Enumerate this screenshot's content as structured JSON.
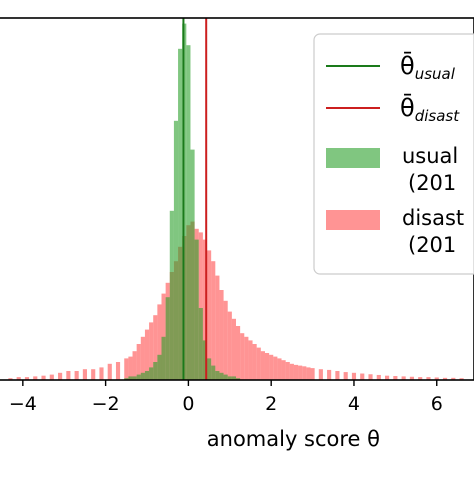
{
  "chart_data": {
    "type": "histogram",
    "xlabel": "anomaly score θ",
    "ylabel": "",
    "xlim": [
      -4.6,
      6.9
    ],
    "xticks": [
      -4,
      -2,
      0,
      2,
      4,
      6
    ],
    "x_tick_labels": [
      "−4",
      "−2",
      "0",
      "2",
      "4",
      "6"
    ],
    "yticks": [],
    "grid": false,
    "legend_position": "top-right",
    "colors": {
      "usual": "#2ca02c",
      "disaster": "#ff4d4d",
      "usual_mean_line": "#1a7a1a",
      "disaster_mean_line": "#cc1f1f"
    },
    "vertical_lines": [
      {
        "name": "θ̄usual",
        "x": -0.12,
        "color": "#1a7a1a"
      },
      {
        "name": "θ̄disast",
        "x": 0.43,
        "color": "#cc1f1f"
      }
    ],
    "series": [
      {
        "name": "usual (201",
        "bins": [
          [
            -1.5,
            0.005
          ],
          [
            -1.4,
            0.01
          ],
          [
            -1.3,
            0.01
          ],
          [
            -1.2,
            0.015
          ],
          [
            -1.1,
            0.02
          ],
          [
            -1.0,
            0.025
          ],
          [
            -0.9,
            0.035
          ],
          [
            -0.8,
            0.05
          ],
          [
            -0.7,
            0.07
          ],
          [
            -0.6,
            0.12
          ],
          [
            -0.5,
            0.23
          ],
          [
            -0.4,
            0.47
          ],
          [
            -0.3,
            0.72
          ],
          [
            -0.2,
            0.92
          ],
          [
            -0.1,
            0.99
          ],
          [
            0.0,
            0.93
          ],
          [
            0.1,
            0.64
          ],
          [
            0.2,
            0.39
          ],
          [
            0.3,
            0.2
          ],
          [
            0.4,
            0.11
          ],
          [
            0.5,
            0.06
          ],
          [
            0.6,
            0.04
          ],
          [
            0.7,
            0.025
          ],
          [
            0.8,
            0.02
          ],
          [
            0.9,
            0.015
          ],
          [
            1.0,
            0.01
          ],
          [
            1.1,
            0.01
          ],
          [
            1.2,
            0.005
          ]
        ],
        "bin_width": 0.1
      },
      {
        "name": "disast (201",
        "bins": [
          [
            -4.3,
            0.005
          ],
          [
            -4.1,
            0.008
          ],
          [
            -3.9,
            0.008
          ],
          [
            -3.7,
            0.01
          ],
          [
            -3.5,
            0.012
          ],
          [
            -3.3,
            0.015
          ],
          [
            -3.1,
            0.02
          ],
          [
            -2.9,
            0.025
          ],
          [
            -2.7,
            0.025
          ],
          [
            -2.5,
            0.03
          ],
          [
            -2.3,
            0.03
          ],
          [
            -2.1,
            0.035
          ],
          [
            -1.9,
            0.045
          ],
          [
            -1.7,
            0.05
          ],
          [
            -1.5,
            0.06
          ],
          [
            -1.4,
            0.065
          ],
          [
            -1.3,
            0.08
          ],
          [
            -1.2,
            0.1
          ],
          [
            -1.1,
            0.12
          ],
          [
            -1.0,
            0.14
          ],
          [
            -0.9,
            0.16
          ],
          [
            -0.8,
            0.18
          ],
          [
            -0.7,
            0.21
          ],
          [
            -0.6,
            0.24
          ],
          [
            -0.5,
            0.27
          ],
          [
            -0.4,
            0.3
          ],
          [
            -0.3,
            0.33
          ],
          [
            -0.2,
            0.37
          ],
          [
            -0.1,
            0.4
          ],
          [
            0.0,
            0.43
          ],
          [
            0.1,
            0.44
          ],
          [
            0.2,
            0.42
          ],
          [
            0.3,
            0.41
          ],
          [
            0.4,
            0.39
          ],
          [
            0.5,
            0.36
          ],
          [
            0.6,
            0.33
          ],
          [
            0.7,
            0.29
          ],
          [
            0.8,
            0.25
          ],
          [
            0.9,
            0.22
          ],
          [
            1.0,
            0.19
          ],
          [
            1.1,
            0.17
          ],
          [
            1.2,
            0.15
          ],
          [
            1.3,
            0.13
          ],
          [
            1.4,
            0.12
          ],
          [
            1.5,
            0.11
          ],
          [
            1.6,
            0.1
          ],
          [
            1.7,
            0.09
          ],
          [
            1.8,
            0.08
          ],
          [
            1.9,
            0.075
          ],
          [
            2.0,
            0.07
          ],
          [
            2.1,
            0.065
          ],
          [
            2.2,
            0.06
          ],
          [
            2.3,
            0.055
          ],
          [
            2.4,
            0.05
          ],
          [
            2.5,
            0.045
          ],
          [
            2.6,
            0.042
          ],
          [
            2.7,
            0.04
          ],
          [
            2.8,
            0.038
          ],
          [
            2.9,
            0.035
          ],
          [
            3.0,
            0.033
          ],
          [
            3.2,
            0.03
          ],
          [
            3.4,
            0.028
          ],
          [
            3.6,
            0.025
          ],
          [
            3.8,
            0.022
          ],
          [
            4.0,
            0.02
          ],
          [
            4.2,
            0.018
          ],
          [
            4.4,
            0.016
          ],
          [
            4.6,
            0.014
          ],
          [
            4.8,
            0.012
          ],
          [
            5.0,
            0.011
          ],
          [
            5.2,
            0.01
          ],
          [
            5.4,
            0.009
          ],
          [
            5.6,
            0.008
          ],
          [
            5.8,
            0.008
          ],
          [
            6.0,
            0.007
          ],
          [
            6.2,
            0.006
          ],
          [
            6.4,
            0.006
          ],
          [
            6.6,
            0.005
          ]
        ],
        "bin_width": 0.1
      }
    ],
    "legend": [
      {
        "kind": "line",
        "label": "θ̄usual",
        "color": "#1a7a1a"
      },
      {
        "kind": "line",
        "label": "θ̄disast",
        "color": "#cc1f1f"
      },
      {
        "kind": "patch",
        "label": "usual",
        "label2": "(201",
        "color": "#2ca02c"
      },
      {
        "kind": "patch",
        "label": "disast",
        "label2": "(201",
        "color": "#ff4d4d"
      }
    ]
  }
}
